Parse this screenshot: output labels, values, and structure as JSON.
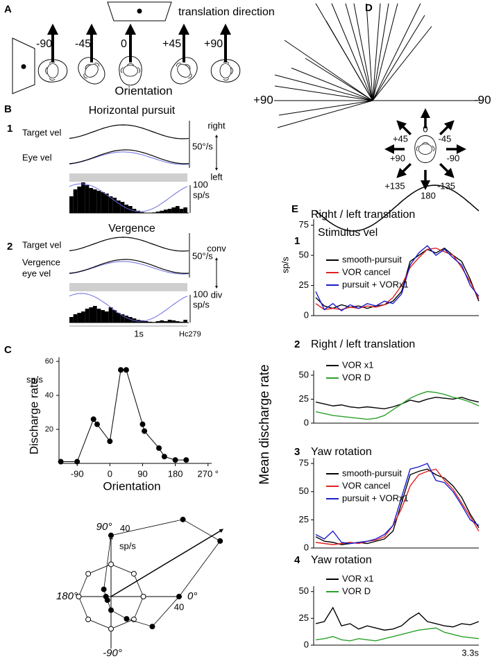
{
  "panel_a": {
    "label": "A",
    "direction_label": "translation direction",
    "orientations": [
      "-90",
      "-45",
      "0",
      "+45",
      "+90"
    ],
    "axis_label": "Orientation"
  },
  "panel_b": {
    "label": "B",
    "time_label": "1s",
    "cell_id": "Hc279",
    "rows": [
      {
        "number": "1",
        "title": "Horizontal pursuit",
        "trace_labels": [
          [
            "Target vel"
          ],
          [
            "Eye vel"
          ]
        ],
        "velocity_scale": "50°/s",
        "directions": [
          "right",
          "left"
        ],
        "rate_scale": {
          "value": 100,
          "label": "100",
          "unit": "sp/s"
        },
        "histogram": [
          60,
          85,
          95,
          110,
          100,
          90,
          85,
          80,
          75,
          70,
          60,
          55,
          45,
          40,
          30,
          25,
          15,
          8,
          3,
          0,
          0,
          2,
          5,
          8,
          12,
          15,
          20,
          25,
          15,
          20
        ]
      },
      {
        "number": "2",
        "title": "Vergence",
        "trace_labels": [
          [
            "Target vel"
          ],
          [
            "Vergence",
            "eye vel"
          ]
        ],
        "velocity_scale": "50°/s",
        "directions": [
          "conv",
          "div"
        ],
        "rate_scale": {
          "value": 100,
          "label": "100",
          "unit": "sp/s"
        },
        "histogram": [
          20,
          30,
          35,
          40,
          50,
          55,
          60,
          50,
          45,
          40,
          55,
          45,
          35,
          30,
          25,
          20,
          15,
          10,
          8,
          5,
          3,
          2,
          5,
          8,
          5,
          10,
          8,
          5,
          3,
          10
        ]
      }
    ]
  },
  "panel_c": {
    "label": "C",
    "tuning": {
      "type": "scatter",
      "y_unit": "sp/s",
      "y_label": "Discharge rate",
      "x_label": "Orientation",
      "xlim": [
        -140,
        280
      ],
      "ylim": [
        0,
        60
      ],
      "yticks": [
        20,
        40,
        60
      ],
      "xticks": [
        -90,
        0,
        90,
        180,
        {
          "value": 270,
          "label": "270 °"
        }
      ],
      "x": [
        -135,
        -90,
        -45,
        -35,
        0,
        30,
        45,
        90,
        95,
        135,
        150,
        180,
        210
      ],
      "values": [
        1,
        1,
        26,
        23,
        13,
        55,
        55,
        23,
        19,
        9,
        4,
        2,
        2
      ]
    },
    "polar": {
      "rlim": [
        0,
        40
      ],
      "rticks": [
        40
      ],
      "r_unit": "sp/s",
      "angle_labels": [
        {
          "value": 90,
          "label": "90°"
        },
        {
          "value": 180,
          "label": "180°"
        },
        {
          "value": 0,
          "label": "0°"
        },
        {
          "value": -90,
          "label": "-90°"
        }
      ],
      "filled": {
        "angles": [
          0,
          27,
          47,
          90,
          135,
          180,
          225,
          270,
          305,
          324
        ],
        "values": [
          40,
          72,
          62,
          36,
          6,
          3,
          3,
          8,
          16,
          30
        ]
      },
      "open": {
        "angles": [
          0,
          45,
          90,
          135,
          180,
          225,
          270,
          315
        ],
        "values": [
          19,
          19,
          19,
          19,
          19,
          19,
          19,
          19
        ]
      },
      "vector": {
        "angle": 31,
        "value": 76
      }
    }
  },
  "panel_d": {
    "label": "D",
    "axis_labels": [
      "+90",
      "-90"
    ],
    "direction_labels": [
      "0",
      "-45",
      "-90",
      "-135",
      "180",
      "+135",
      "+90",
      "+45"
    ]
  },
  "panel_e": {
    "label": "E",
    "y_label": "Mean discharge rate",
    "y_unit": "sp/s",
    "time_label": "3.3s",
    "stimulus_label": "Stimulus vel",
    "plots": [
      {
        "number": "1",
        "title": "Right / left translation",
        "ylim": [
          0,
          80
        ],
        "yticks": [
          0,
          25,
          50,
          75
        ],
        "series": [
          {
            "name": "smooth-pursuit",
            "color": "#000000",
            "values": [
              15,
              8,
              6,
              9,
              7,
              8,
              6,
              8,
              9,
              12,
              20,
              45,
              50,
              55,
              52,
              56,
              50,
              45,
              30,
              12
            ]
          },
          {
            "name": "VOR cancel",
            "color": "#e02020",
            "values": [
              10,
              5,
              6,
              5,
              7,
              6,
              8,
              7,
              9,
              15,
              25,
              40,
              48,
              55,
              56,
              53,
              50,
              40,
              28,
              14
            ]
          },
          {
            "name": "pursuit + VORx1",
            "color": "#1a1acc",
            "values": [
              20,
              5,
              10,
              4,
              9,
              6,
              10,
              8,
              12,
              10,
              18,
              42,
              52,
              58,
              50,
              55,
              48,
              42,
              25,
              16
            ]
          }
        ]
      },
      {
        "number": "2",
        "title": "Right / left translation",
        "ylim": [
          0,
          55
        ],
        "yticks": [
          0,
          25,
          50
        ],
        "series": [
          {
            "name": "VOR x1",
            "color": "#000000",
            "values": [
              22,
              20,
              18,
              19,
              17,
              16,
              17,
              16,
              15,
              17,
              20,
              24,
              22,
              25,
              27,
              26,
              25,
              27,
              24,
              22
            ]
          },
          {
            "name": "VOR D",
            "color": "#2aa02a",
            "values": [
              12,
              10,
              8,
              7,
              6,
              5,
              4,
              5,
              8,
              14,
              20,
              26,
              30,
              33,
              32,
              30,
              27,
              25,
              22,
              18
            ]
          }
        ]
      },
      {
        "number": "3",
        "title": "Yaw rotation",
        "ylim": [
          0,
          80
        ],
        "yticks": [
          0,
          25,
          50,
          75
        ],
        "series": [
          {
            "name": "smooth-pursuit",
            "color": "#000000",
            "values": [
              10,
              6,
              5,
              3,
              4,
              5,
              4,
              6,
              8,
              15,
              40,
              65,
              68,
              70,
              65,
              62,
              55,
              45,
              30,
              18
            ]
          },
          {
            "name": "VOR cancel",
            "color": "#e02020",
            "values": [
              5,
              4,
              3,
              4,
              5,
              4,
              6,
              7,
              10,
              20,
              35,
              55,
              65,
              68,
              70,
              60,
              52,
              40,
              28,
              15
            ]
          },
          {
            "name": "pursuit + VORx1",
            "color": "#1a1acc",
            "values": [
              12,
              8,
              15,
              5,
              4,
              5,
              6,
              8,
              12,
              20,
              45,
              70,
              72,
              75,
              60,
              58,
              50,
              38,
              25,
              20
            ]
          }
        ]
      },
      {
        "number": "4",
        "title": "Yaw rotation",
        "ylim": [
          0,
          55
        ],
        "yticks": [
          0,
          25,
          50
        ],
        "series": [
          {
            "name": "VOR x1",
            "color": "#000000",
            "values": [
              20,
              22,
              35,
              18,
              20,
              15,
              18,
              16,
              14,
              15,
              18,
              25,
              30,
              22,
              20,
              18,
              17,
              20,
              19,
              22
            ]
          },
          {
            "name": "VOR D",
            "color": "#2aa02a",
            "values": [
              5,
              6,
              8,
              5,
              4,
              6,
              5,
              4,
              6,
              8,
              10,
              12,
              14,
              15,
              16,
              12,
              10,
              8,
              7,
              6
            ]
          }
        ]
      }
    ]
  }
}
